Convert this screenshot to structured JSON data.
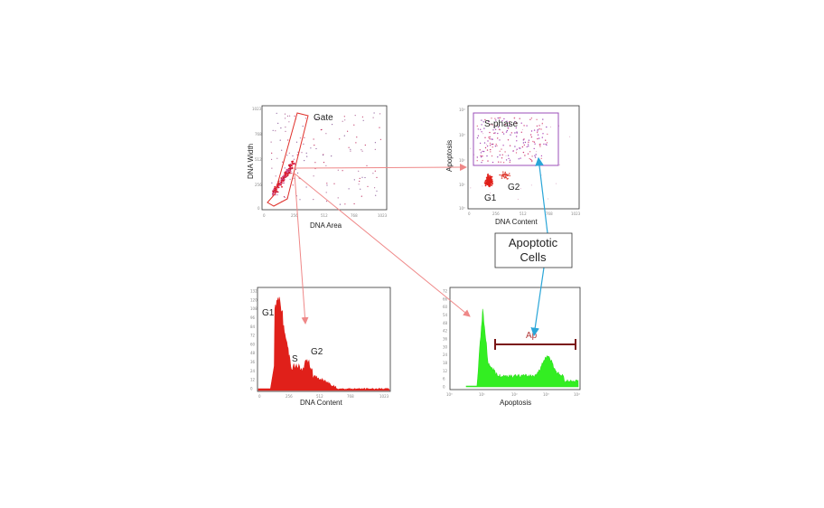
{
  "colors": {
    "red": "#e0201a",
    "green": "#33ee22",
    "gate": "#e0302a",
    "purple": "#9b4fb8",
    "arrow_red": "#ef8888",
    "arrow_blue": "#2aa6d8",
    "apop_bar": "#7a1515"
  },
  "scatter1": {
    "xlabel": "DNA Area",
    "ylabel": "DNA Width",
    "xticks": [
      "0",
      "256",
      "512",
      "768",
      "1023"
    ],
    "yticks": [
      "1023",
      "768",
      "512",
      "256",
      "0"
    ],
    "gate_label": "Gate"
  },
  "scatter2": {
    "xlabel": "DNA Content",
    "ylabel": "Apoptosis",
    "xticks": [
      "0",
      "256",
      "512",
      "768",
      "1023"
    ],
    "yticks": [
      "10⁴",
      "10³",
      "10²",
      "10¹",
      "10⁰"
    ],
    "sphase_label": "S-phase",
    "g1_label": "G1",
    "g2_label": "G2"
  },
  "hist1": {
    "xlabel": "DNA Content",
    "xticks": [
      "0",
      "256",
      "512",
      "768",
      "1023"
    ],
    "yticks": [
      "132",
      "120",
      "108",
      "96",
      "84",
      "72",
      "60",
      "48",
      "36",
      "24",
      "12",
      "0"
    ],
    "g1_label": "G1",
    "s_label": "S",
    "g2_label": "G2"
  },
  "hist2": {
    "xlabel": "Apoptosis",
    "xticks": [
      "10⁰",
      "10¹",
      "10²",
      "10³",
      "10⁴"
    ],
    "yticks": [
      "72",
      "66",
      "60",
      "54",
      "48",
      "42",
      "36",
      "30",
      "24",
      "18",
      "12",
      "6",
      "0"
    ],
    "ap_label": "Ap"
  },
  "callout": {
    "line1": "Apoptotic",
    "line2": "Cells"
  }
}
